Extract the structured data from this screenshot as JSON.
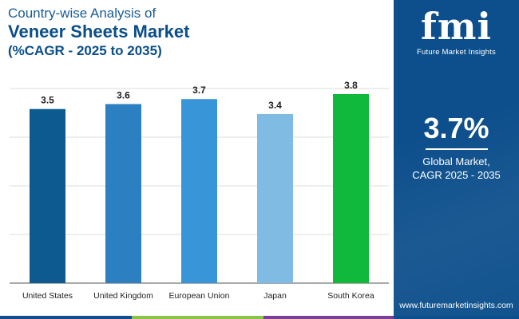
{
  "title": {
    "line1": "Country-wise Analysis of",
    "line2": "Veneer Sheets Market",
    "line3": "(%CAGR - 2025 to 2035)"
  },
  "chart_data": {
    "type": "bar",
    "categories": [
      "United States",
      "United Kingdom",
      "European Union",
      "Japan",
      "South Korea"
    ],
    "values": [
      3.5,
      3.6,
      3.7,
      3.4,
      3.8
    ],
    "value_labels": [
      "3.5",
      "3.6",
      "3.7",
      "3.4",
      "3.8"
    ],
    "bar_colors": [
      "#0d5a91",
      "#2c7fc0",
      "#3896d8",
      "#7fbbe3",
      "#10b83c"
    ],
    "ylim": [
      0,
      3.8
    ],
    "grid": true,
    "legend": "none"
  },
  "panel": {
    "logo_text": "fmi",
    "logo_subtitle": "Future Market Insights",
    "value": "3.7%",
    "label_line1": "Global Market,",
    "label_line2": "CAGR 2025 - 2035",
    "website": "www.futuremarketinsights.com",
    "background_color": "#0d4f8c"
  },
  "footer_stripe_colors": [
    "#0d4f8c",
    "#8bc34a",
    "#7b3f98",
    "#0d4f8c"
  ]
}
